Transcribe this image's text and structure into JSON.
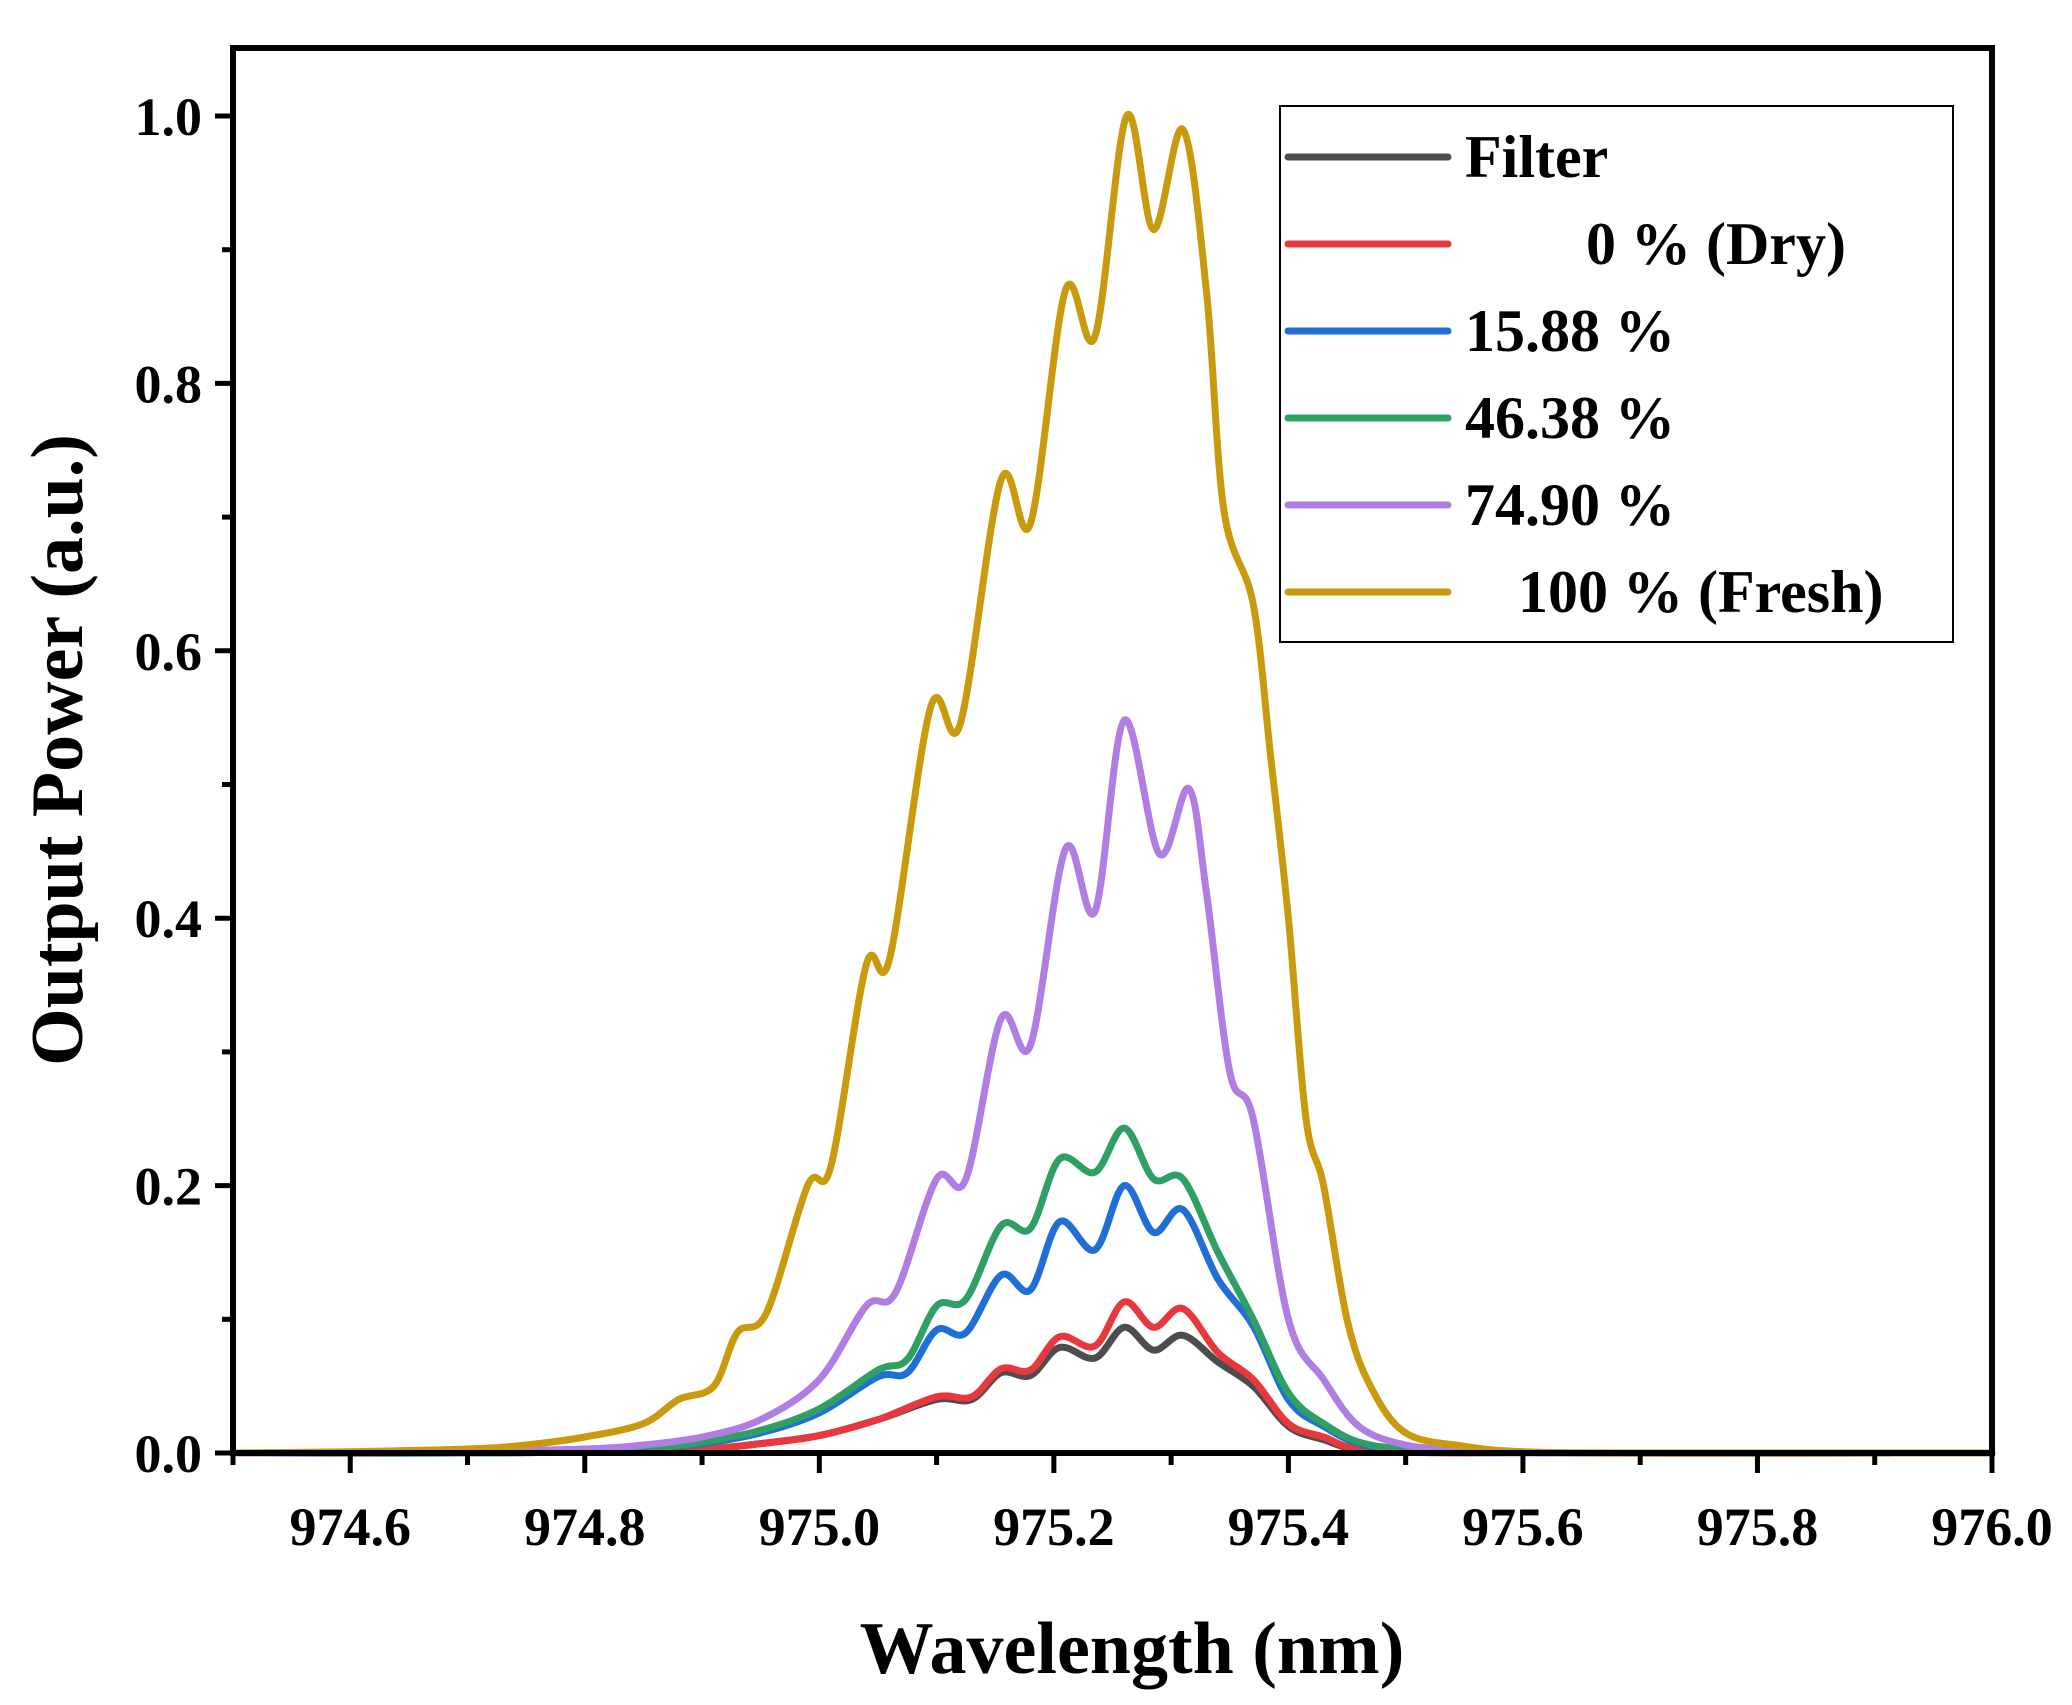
{
  "chart_data": {
    "type": "line",
    "title": "",
    "xlabel": "Wavelength (nm)",
    "ylabel": "Output Power (a.u.)",
    "xlim": [
      974.5,
      976.0
    ],
    "ylim": [
      0.0,
      1.05
    ],
    "xticks": [
      974.6,
      974.8,
      975.0,
      975.2,
      975.4,
      975.6,
      975.8,
      976.0
    ],
    "xtick_labels": [
      "974.6",
      "974.8",
      "975.0",
      "975.2",
      "975.4",
      "975.6",
      "975.8",
      "976.0"
    ],
    "yticks": [
      0.0,
      0.2,
      0.4,
      0.6,
      0.8,
      1.0
    ],
    "ytick_labels": [
      "0.0",
      "0.2",
      "0.4",
      "0.6",
      "0.8",
      "1.0"
    ],
    "grid": false,
    "legend_position": "top-right",
    "series": [
      {
        "name": "Filter",
        "color": "#4d4d4d",
        "points": [
          [
            974.5,
            0
          ],
          [
            974.7,
            0
          ],
          [
            974.8,
            0.001
          ],
          [
            974.9,
            0.003
          ],
          [
            974.95,
            0.007
          ],
          [
            975.0,
            0.013
          ],
          [
            975.05,
            0.025
          ],
          [
            975.1,
            0.04
          ],
          [
            975.13,
            0.04
          ],
          [
            975.155,
            0.06
          ],
          [
            975.18,
            0.058
          ],
          [
            975.205,
            0.079
          ],
          [
            975.235,
            0.071
          ],
          [
            975.26,
            0.094
          ],
          [
            975.285,
            0.077
          ],
          [
            975.31,
            0.088
          ],
          [
            975.34,
            0.068
          ],
          [
            975.37,
            0.05
          ],
          [
            975.4,
            0.02
          ],
          [
            975.43,
            0.01
          ],
          [
            975.47,
            0.002
          ],
          [
            975.6,
            0
          ],
          [
            976.0,
            0
          ]
        ]
      },
      {
        "name": "0 % (Dry)",
        "color": "#e8383d",
        "points": [
          [
            974.5,
            0
          ],
          [
            974.7,
            0
          ],
          [
            974.8,
            0.001
          ],
          [
            974.9,
            0.003
          ],
          [
            974.95,
            0.007
          ],
          [
            975.0,
            0.013
          ],
          [
            975.05,
            0.025
          ],
          [
            975.1,
            0.042
          ],
          [
            975.13,
            0.042
          ],
          [
            975.155,
            0.063
          ],
          [
            975.18,
            0.062
          ],
          [
            975.205,
            0.087
          ],
          [
            975.235,
            0.08
          ],
          [
            975.26,
            0.113
          ],
          [
            975.285,
            0.094
          ],
          [
            975.31,
            0.108
          ],
          [
            975.34,
            0.075
          ],
          [
            975.37,
            0.055
          ],
          [
            975.4,
            0.022
          ],
          [
            975.43,
            0.012
          ],
          [
            975.47,
            0.002
          ],
          [
            975.6,
            0
          ],
          [
            976.0,
            0
          ]
        ]
      },
      {
        "name": "15.88 %",
        "color": "#1f6fd6",
        "points": [
          [
            974.5,
            0
          ],
          [
            974.7,
            0
          ],
          [
            974.8,
            0.001
          ],
          [
            974.85,
            0.003
          ],
          [
            974.9,
            0.007
          ],
          [
            974.95,
            0.015
          ],
          [
            975.0,
            0.03
          ],
          [
            975.05,
            0.057
          ],
          [
            975.075,
            0.06
          ],
          [
            975.1,
            0.092
          ],
          [
            975.125,
            0.09
          ],
          [
            975.155,
            0.133
          ],
          [
            975.18,
            0.122
          ],
          [
            975.205,
            0.173
          ],
          [
            975.235,
            0.152
          ],
          [
            975.26,
            0.2
          ],
          [
            975.285,
            0.165
          ],
          [
            975.31,
            0.182
          ],
          [
            975.34,
            0.13
          ],
          [
            975.37,
            0.095
          ],
          [
            975.4,
            0.04
          ],
          [
            975.43,
            0.02
          ],
          [
            975.47,
            0.005
          ],
          [
            975.55,
            0.001
          ],
          [
            975.6,
            0
          ],
          [
            976.0,
            0
          ]
        ]
      },
      {
        "name": "46.38 %",
        "color": "#2ea063",
        "points": [
          [
            974.5,
            0
          ],
          [
            974.7,
            0
          ],
          [
            974.8,
            0.001
          ],
          [
            974.85,
            0.003
          ],
          [
            974.9,
            0.008
          ],
          [
            974.95,
            0.017
          ],
          [
            975.0,
            0.033
          ],
          [
            975.05,
            0.062
          ],
          [
            975.075,
            0.07
          ],
          [
            975.1,
            0.11
          ],
          [
            975.125,
            0.115
          ],
          [
            975.155,
            0.17
          ],
          [
            975.18,
            0.168
          ],
          [
            975.205,
            0.22
          ],
          [
            975.235,
            0.21
          ],
          [
            975.26,
            0.243
          ],
          [
            975.285,
            0.205
          ],
          [
            975.31,
            0.205
          ],
          [
            975.34,
            0.15
          ],
          [
            975.37,
            0.1
          ],
          [
            975.4,
            0.045
          ],
          [
            975.43,
            0.022
          ],
          [
            975.47,
            0.006
          ],
          [
            975.55,
            0.001
          ],
          [
            975.6,
            0
          ],
          [
            976.0,
            0
          ]
        ]
      },
      {
        "name": "74.90 %",
        "color": "#b07de3",
        "points": [
          [
            974.5,
            0
          ],
          [
            974.6,
            0
          ],
          [
            974.7,
            0.001
          ],
          [
            974.8,
            0.003
          ],
          [
            974.85,
            0.006
          ],
          [
            974.9,
            0.012
          ],
          [
            974.95,
            0.025
          ],
          [
            975.0,
            0.055
          ],
          [
            975.04,
            0.11
          ],
          [
            975.065,
            0.12
          ],
          [
            975.1,
            0.205
          ],
          [
            975.125,
            0.205
          ],
          [
            975.155,
            0.325
          ],
          [
            975.18,
            0.305
          ],
          [
            975.21,
            0.452
          ],
          [
            975.235,
            0.405
          ],
          [
            975.26,
            0.548
          ],
          [
            975.29,
            0.448
          ],
          [
            975.315,
            0.497
          ],
          [
            975.33,
            0.42
          ],
          [
            975.35,
            0.285
          ],
          [
            975.37,
            0.25
          ],
          [
            975.4,
            0.1
          ],
          [
            975.43,
            0.055
          ],
          [
            975.46,
            0.02
          ],
          [
            975.5,
            0.006
          ],
          [
            975.55,
            0.002
          ],
          [
            975.6,
            0
          ],
          [
            976.0,
            0
          ]
        ]
      },
      {
        "name": "100 % (Fresh)",
        "color": "#c99a0d",
        "points": [
          [
            974.5,
            0
          ],
          [
            974.6,
            0.001
          ],
          [
            974.7,
            0.003
          ],
          [
            974.75,
            0.006
          ],
          [
            974.8,
            0.012
          ],
          [
            974.85,
            0.022
          ],
          [
            974.88,
            0.04
          ],
          [
            974.91,
            0.05
          ],
          [
            974.93,
            0.09
          ],
          [
            974.955,
            0.105
          ],
          [
            974.99,
            0.2
          ],
          [
            975.01,
            0.215
          ],
          [
            975.04,
            0.365
          ],
          [
            975.06,
            0.37
          ],
          [
            975.095,
            0.558
          ],
          [
            975.12,
            0.545
          ],
          [
            975.155,
            0.728
          ],
          [
            975.18,
            0.695
          ],
          [
            975.21,
            0.87
          ],
          [
            975.235,
            0.835
          ],
          [
            975.262,
            1.0
          ],
          [
            975.285,
            0.915
          ],
          [
            975.31,
            0.99
          ],
          [
            975.33,
            0.87
          ],
          [
            975.345,
            0.705
          ],
          [
            975.37,
            0.635
          ],
          [
            975.385,
            0.52
          ],
          [
            975.4,
            0.4
          ],
          [
            975.415,
            0.25
          ],
          [
            975.43,
            0.2
          ],
          [
            975.45,
            0.1
          ],
          [
            975.47,
            0.05
          ],
          [
            975.5,
            0.015
          ],
          [
            975.55,
            0.005
          ],
          [
            975.6,
            0.001
          ],
          [
            975.7,
            0
          ],
          [
            976.0,
            0
          ]
        ]
      }
    ]
  }
}
